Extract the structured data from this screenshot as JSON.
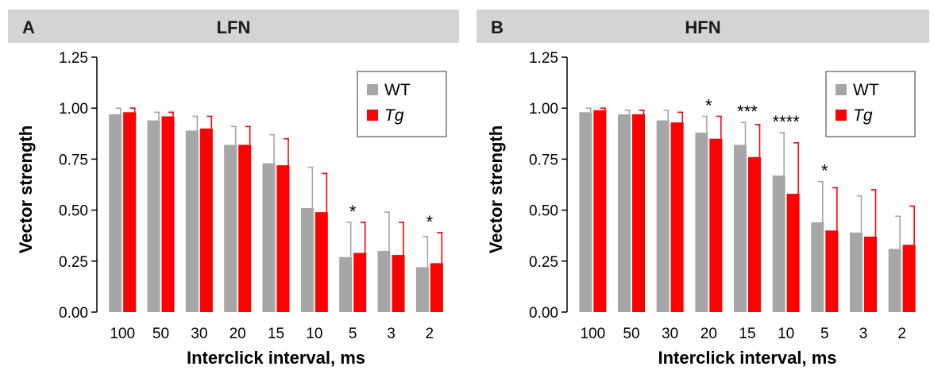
{
  "chart_data": [
    {
      "type": "bar",
      "panel_letter": "A",
      "title": "LFN",
      "xlabel": "Interclick interval, ms",
      "ylabel": "Vector strength",
      "ylim": [
        0,
        1.25
      ],
      "yticks": [
        "0.00",
        "0.25",
        "0.50",
        "0.75",
        "1.00",
        "1.25"
      ],
      "categories": [
        "100",
        "50",
        "30",
        "20",
        "15",
        "10",
        "5",
        "3",
        "2"
      ],
      "series": [
        {
          "name": "WT",
          "italic": false,
          "color": "#a6a6a6",
          "values": [
            0.97,
            0.94,
            0.89,
            0.82,
            0.73,
            0.51,
            0.27,
            0.3,
            0.22
          ],
          "errors": [
            0.03,
            0.04,
            0.07,
            0.09,
            0.14,
            0.2,
            0.17,
            0.19,
            0.15
          ]
        },
        {
          "name": "Tg",
          "italic": true,
          "color": "#ff0000",
          "values": [
            0.98,
            0.96,
            0.9,
            0.82,
            0.72,
            0.49,
            0.29,
            0.28,
            0.24
          ],
          "errors": [
            0.02,
            0.02,
            0.06,
            0.09,
            0.13,
            0.19,
            0.15,
            0.16,
            0.15
          ]
        }
      ],
      "annotations": [
        {
          "category": "5",
          "text": "*"
        },
        {
          "category": "2",
          "text": "*"
        }
      ],
      "legend_position": "top-right"
    },
    {
      "type": "bar",
      "panel_letter": "B",
      "title": "HFN",
      "xlabel": "Interclick interval, ms",
      "ylabel": "Vector strength",
      "ylim": [
        0,
        1.25
      ],
      "yticks": [
        "0.00",
        "0.25",
        "0.50",
        "0.75",
        "1.00",
        "1.25"
      ],
      "categories": [
        "100",
        "50",
        "30",
        "20",
        "15",
        "10",
        "5",
        "3",
        "2"
      ],
      "series": [
        {
          "name": "WT",
          "italic": false,
          "color": "#a6a6a6",
          "values": [
            0.98,
            0.97,
            0.94,
            0.88,
            0.82,
            0.67,
            0.44,
            0.39,
            0.31
          ],
          "errors": [
            0.02,
            0.02,
            0.05,
            0.08,
            0.11,
            0.21,
            0.2,
            0.18,
            0.16
          ]
        },
        {
          "name": "Tg",
          "italic": true,
          "color": "#ff0000",
          "values": [
            0.99,
            0.97,
            0.93,
            0.85,
            0.76,
            0.58,
            0.4,
            0.37,
            0.33
          ],
          "errors": [
            0.01,
            0.02,
            0.05,
            0.11,
            0.16,
            0.25,
            0.21,
            0.23,
            0.19
          ]
        }
      ],
      "annotations": [
        {
          "category": "20",
          "text": "*"
        },
        {
          "category": "15",
          "text": "***"
        },
        {
          "category": "10",
          "text": "****"
        },
        {
          "category": "5",
          "text": "*"
        }
      ],
      "legend_position": "top-right"
    }
  ]
}
